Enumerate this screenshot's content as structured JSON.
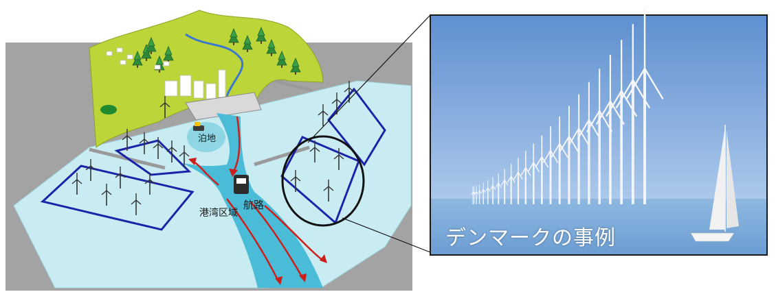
{
  "labels": {
    "anchorage": "泊地",
    "channel": "航路",
    "port_area": "港湾区域"
  },
  "photo": {
    "caption": "デンマークの事例"
  },
  "colors": {
    "sea": "#c9ecf2",
    "channel": "#4bbcd8",
    "land": "#bcd63a",
    "frame": "#a3a3a3",
    "zone_outline": "#1b23a8",
    "arrow": "#cc1f1a",
    "sky": "#7aa3d8"
  },
  "icons": [
    "wind-turbine-icon",
    "ship-icon",
    "sailboat-icon",
    "tree-icon",
    "building-icon"
  ]
}
